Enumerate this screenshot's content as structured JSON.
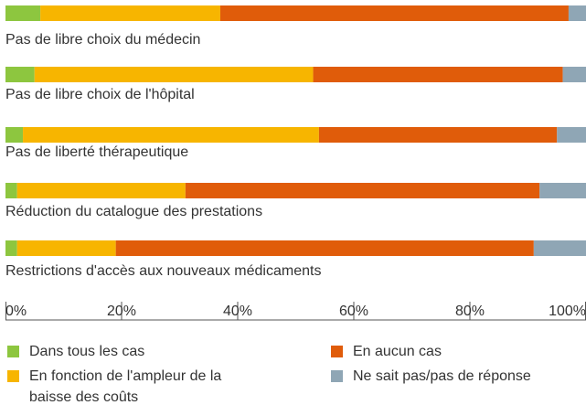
{
  "chart_data": {
    "type": "bar",
    "orientation": "horizontal",
    "stacked": true,
    "categories": [
      "Pas de libre choix du médecin",
      "Pas de libre choix de l'hôpital",
      "Pas de liberté thérapeutique",
      "Réduction du catalogue des prestations",
      "Restrictions d'accès aux nouveaux médicaments"
    ],
    "series": [
      {
        "name": "Dans tous les cas",
        "color": "#8dc63f",
        "values": [
          6,
          5,
          3,
          2,
          2
        ]
      },
      {
        "name": "En fonction de l'ampleur de la baisse des coûts",
        "color": "#f7b500",
        "values": [
          31,
          48,
          51,
          29,
          17
        ]
      },
      {
        "name": "En aucun cas",
        "color": "#e05c0a",
        "values": [
          60,
          43,
          41,
          61,
          72
        ]
      },
      {
        "name": "Ne sait pas/pas de réponse",
        "color": "#8fa6b5",
        "values": [
          3,
          4,
          5,
          8,
          9
        ]
      }
    ],
    "xlim": [
      0,
      100
    ],
    "xticks": [
      {
        "value": 0,
        "label": "0%"
      },
      {
        "value": 20,
        "label": "20%"
      },
      {
        "value": 40,
        "label": "40%"
      },
      {
        "value": 60,
        "label": "60%"
      },
      {
        "value": 80,
        "label": "80%"
      },
      {
        "value": 100,
        "label": "100%"
      }
    ]
  }
}
